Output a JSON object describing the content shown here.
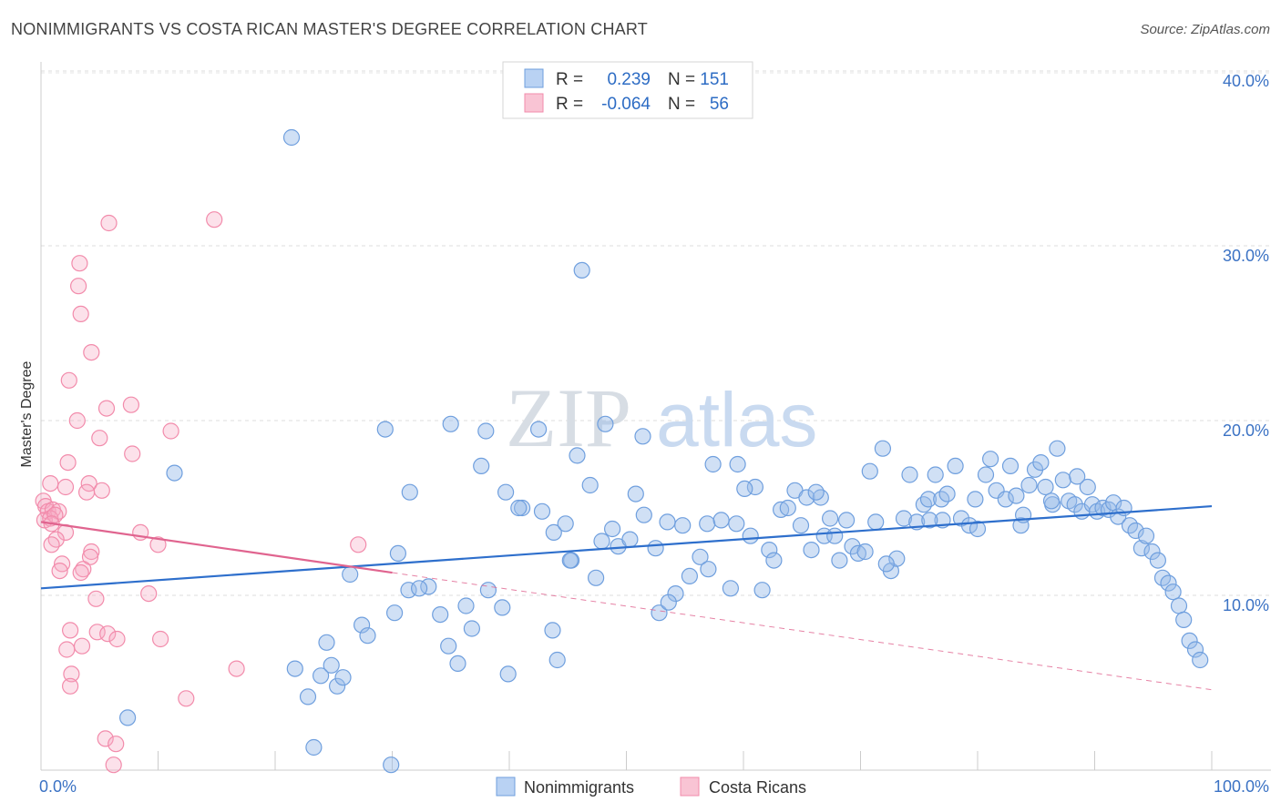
{
  "title": "NONIMMIGRANTS VS COSTA RICAN MASTER'S DEGREE CORRELATION CHART",
  "source": "Source: ZipAtlas.com",
  "watermark": {
    "zip": "ZIP",
    "atlas": "atlas"
  },
  "colors": {
    "blue": "#6f9fde",
    "blue_line": "#2e6fcc",
    "pink": "#f28bab",
    "pink_line": "#e0648f"
  },
  "legend": {
    "r_label": "R =",
    "n_label": "N =",
    "rows": [
      {
        "series": "Nonimmigrants",
        "r": "0.239",
        "n": "151"
      },
      {
        "series": "Costa Ricans",
        "r": "-0.064",
        "n": "56"
      }
    ]
  },
  "chart_data": {
    "type": "scatter",
    "title": "NONIMMIGRANTS VS COSTA RICAN MASTER'S DEGREE CORRELATION CHART",
    "ylabel": "Master's Degree",
    "xlabel": "",
    "xlim": [
      0,
      100
    ],
    "ylim": [
      0,
      40
    ],
    "x_tick_labels": [
      "0.0%",
      "100.0%"
    ],
    "y_ticks": [
      10,
      20,
      30,
      40
    ],
    "y_tick_labels": [
      "10.0%",
      "20.0%",
      "30.0%",
      "40.0%"
    ],
    "grid": "horizontal dashed",
    "legend_position": "top-center",
    "series": [
      {
        "name": "Nonimmigrants",
        "color": "#6f9fde",
        "trend": {
          "x": [
            0,
            100
          ],
          "y": [
            10.4,
            15.1
          ]
        },
        "points": [
          [
            21.4,
            36.2
          ],
          [
            46.2,
            28.6
          ],
          [
            11.4,
            17.0
          ],
          [
            29.4,
            19.5
          ],
          [
            35.0,
            19.8
          ],
          [
            38.0,
            19.4
          ],
          [
            42.5,
            19.5
          ],
          [
            48.2,
            19.8
          ],
          [
            51.4,
            19.1
          ],
          [
            31.5,
            15.9
          ],
          [
            37.6,
            17.4
          ],
          [
            39.7,
            15.9
          ],
          [
            41.1,
            15.0
          ],
          [
            42.8,
            14.8
          ],
          [
            43.8,
            13.6
          ],
          [
            44.8,
            14.1
          ],
          [
            45.3,
            12.0
          ],
          [
            45.8,
            18.0
          ],
          [
            46.9,
            16.3
          ],
          [
            47.4,
            11.0
          ],
          [
            47.9,
            13.1
          ],
          [
            48.8,
            13.8
          ],
          [
            49.3,
            12.8
          ],
          [
            50.3,
            13.2
          ],
          [
            50.8,
            15.8
          ],
          [
            51.5,
            14.6
          ],
          [
            52.5,
            12.7
          ],
          [
            53.5,
            14.2
          ],
          [
            54.2,
            10.1
          ],
          [
            54.8,
            14.0
          ],
          [
            55.4,
            11.1
          ],
          [
            56.3,
            12.2
          ],
          [
            56.9,
            14.1
          ],
          [
            57.4,
            17.5
          ],
          [
            58.1,
            14.3
          ],
          [
            58.9,
            10.4
          ],
          [
            59.5,
            17.5
          ],
          [
            60.6,
            13.4
          ],
          [
            61.0,
            16.2
          ],
          [
            61.6,
            10.3
          ],
          [
            62.2,
            12.6
          ],
          [
            62.6,
            12.0
          ],
          [
            63.2,
            14.9
          ],
          [
            63.8,
            15.0
          ],
          [
            64.4,
            16.0
          ],
          [
            64.9,
            14.0
          ],
          [
            65.4,
            15.6
          ],
          [
            65.8,
            12.6
          ],
          [
            66.6,
            15.6
          ],
          [
            66.9,
            13.4
          ],
          [
            67.4,
            14.4
          ],
          [
            67.8,
            13.4
          ],
          [
            68.2,
            12.0
          ],
          [
            68.8,
            14.3
          ],
          [
            69.3,
            12.8
          ],
          [
            69.8,
            12.4
          ],
          [
            70.4,
            12.5
          ],
          [
            70.8,
            17.1
          ],
          [
            71.3,
            14.2
          ],
          [
            71.9,
            18.4
          ],
          [
            72.6,
            11.4
          ],
          [
            73.1,
            12.1
          ],
          [
            73.7,
            14.4
          ],
          [
            74.2,
            16.9
          ],
          [
            74.8,
            14.2
          ],
          [
            75.4,
            15.2
          ],
          [
            75.8,
            15.5
          ],
          [
            76.4,
            16.9
          ],
          [
            76.9,
            15.5
          ],
          [
            77.4,
            15.8
          ],
          [
            78.1,
            17.4
          ],
          [
            78.6,
            14.4
          ],
          [
            79.3,
            14.0
          ],
          [
            80.0,
            13.8
          ],
          [
            80.7,
            16.9
          ],
          [
            81.1,
            17.8
          ],
          [
            81.6,
            16.0
          ],
          [
            82.4,
            15.5
          ],
          [
            82.8,
            17.4
          ],
          [
            83.3,
            15.7
          ],
          [
            83.7,
            14.0
          ],
          [
            84.4,
            16.3
          ],
          [
            84.9,
            17.2
          ],
          [
            85.4,
            17.6
          ],
          [
            85.8,
            16.2
          ],
          [
            86.4,
            15.2
          ],
          [
            86.8,
            18.4
          ],
          [
            87.3,
            16.6
          ],
          [
            87.8,
            15.4
          ],
          [
            88.3,
            15.2
          ],
          [
            88.9,
            14.8
          ],
          [
            89.4,
            16.2
          ],
          [
            89.8,
            15.2
          ],
          [
            90.2,
            14.8
          ],
          [
            90.7,
            15.0
          ],
          [
            91.2,
            14.9
          ],
          [
            91.6,
            15.3
          ],
          [
            92.0,
            14.5
          ],
          [
            92.5,
            15.0
          ],
          [
            93.0,
            14.0
          ],
          [
            93.5,
            13.7
          ],
          [
            94.0,
            12.7
          ],
          [
            94.4,
            13.4
          ],
          [
            94.9,
            12.5
          ],
          [
            95.4,
            12.0
          ],
          [
            95.8,
            11.0
          ],
          [
            96.3,
            10.7
          ],
          [
            96.7,
            10.2
          ],
          [
            97.2,
            9.4
          ],
          [
            97.6,
            8.6
          ],
          [
            98.1,
            7.4
          ],
          [
            98.6,
            6.9
          ],
          [
            99.0,
            6.3
          ],
          [
            7.4,
            3.0
          ],
          [
            21.7,
            5.8
          ],
          [
            22.8,
            4.2
          ],
          [
            23.3,
            1.3
          ],
          [
            23.9,
            5.4
          ],
          [
            24.4,
            7.3
          ],
          [
            24.8,
            6.0
          ],
          [
            25.3,
            4.8
          ],
          [
            25.8,
            5.3
          ],
          [
            27.4,
            8.3
          ],
          [
            27.9,
            7.7
          ],
          [
            29.9,
            0.3
          ],
          [
            30.2,
            9.0
          ],
          [
            31.4,
            10.3
          ],
          [
            33.1,
            10.5
          ],
          [
            34.1,
            8.9
          ],
          [
            34.8,
            7.1
          ],
          [
            35.6,
            6.1
          ],
          [
            36.3,
            9.4
          ],
          [
            36.8,
            8.1
          ],
          [
            38.2,
            10.3
          ],
          [
            39.4,
            9.3
          ],
          [
            39.9,
            5.5
          ],
          [
            40.8,
            15.0
          ],
          [
            43.7,
            8.0
          ],
          [
            44.1,
            6.3
          ],
          [
            45.2,
            12.0
          ],
          [
            30.5,
            12.4
          ],
          [
            32.3,
            10.4
          ],
          [
            52.8,
            9.0
          ],
          [
            53.6,
            9.6
          ],
          [
            26.4,
            11.2
          ],
          [
            57.0,
            11.5
          ],
          [
            59.4,
            14.1
          ],
          [
            60.1,
            16.1
          ],
          [
            66.2,
            15.9
          ],
          [
            72.2,
            11.8
          ],
          [
            77.0,
            14.3
          ],
          [
            88.5,
            16.8
          ],
          [
            86.3,
            15.4
          ],
          [
            83.9,
            14.6
          ],
          [
            79.8,
            15.5
          ],
          [
            75.9,
            14.3
          ]
        ]
      },
      {
        "name": "Costa Ricans",
        "color": "#f28bab",
        "trend": {
          "x": [
            0,
            30
          ],
          "y": [
            14.2,
            11.3
          ]
        },
        "trend_extension": {
          "x": [
            30,
            100
          ],
          "y": [
            11.3,
            4.6
          ]
        },
        "points": [
          [
            5.8,
            31.3
          ],
          [
            14.8,
            31.5
          ],
          [
            3.3,
            29.0
          ],
          [
            3.2,
            27.7
          ],
          [
            3.4,
            26.1
          ],
          [
            4.3,
            23.9
          ],
          [
            2.4,
            22.3
          ],
          [
            7.7,
            20.9
          ],
          [
            5.6,
            20.7
          ],
          [
            3.1,
            20.0
          ],
          [
            11.1,
            19.4
          ],
          [
            5.0,
            19.0
          ],
          [
            7.8,
            18.1
          ],
          [
            2.3,
            17.6
          ],
          [
            0.8,
            16.4
          ],
          [
            2.1,
            16.2
          ],
          [
            4.1,
            16.4
          ],
          [
            5.2,
            16.0
          ],
          [
            3.9,
            15.9
          ],
          [
            0.2,
            15.4
          ],
          [
            0.4,
            15.1
          ],
          [
            0.6,
            14.8
          ],
          [
            1.0,
            14.9
          ],
          [
            1.5,
            14.8
          ],
          [
            0.3,
            14.3
          ],
          [
            0.8,
            14.4
          ],
          [
            1.2,
            14.6
          ],
          [
            0.9,
            14.1
          ],
          [
            2.1,
            13.6
          ],
          [
            1.3,
            13.2
          ],
          [
            8.5,
            13.6
          ],
          [
            10.0,
            12.9
          ],
          [
            27.1,
            12.9
          ],
          [
            0.9,
            12.9
          ],
          [
            4.3,
            12.5
          ],
          [
            4.2,
            12.2
          ],
          [
            1.8,
            11.8
          ],
          [
            1.6,
            11.4
          ],
          [
            3.6,
            11.5
          ],
          [
            3.4,
            11.3
          ],
          [
            9.2,
            10.1
          ],
          [
            4.7,
            9.8
          ],
          [
            2.5,
            8.0
          ],
          [
            4.8,
            7.9
          ],
          [
            5.7,
            7.8
          ],
          [
            10.2,
            7.5
          ],
          [
            6.5,
            7.5
          ],
          [
            3.5,
            7.1
          ],
          [
            2.2,
            6.9
          ],
          [
            16.7,
            5.8
          ],
          [
            2.6,
            5.5
          ],
          [
            2.5,
            4.8
          ],
          [
            12.4,
            4.1
          ],
          [
            5.5,
            1.8
          ],
          [
            6.4,
            1.5
          ],
          [
            6.2,
            0.3
          ]
        ]
      }
    ]
  },
  "bottom_legend": [
    "Nonimmigrants",
    "Costa Ricans"
  ]
}
